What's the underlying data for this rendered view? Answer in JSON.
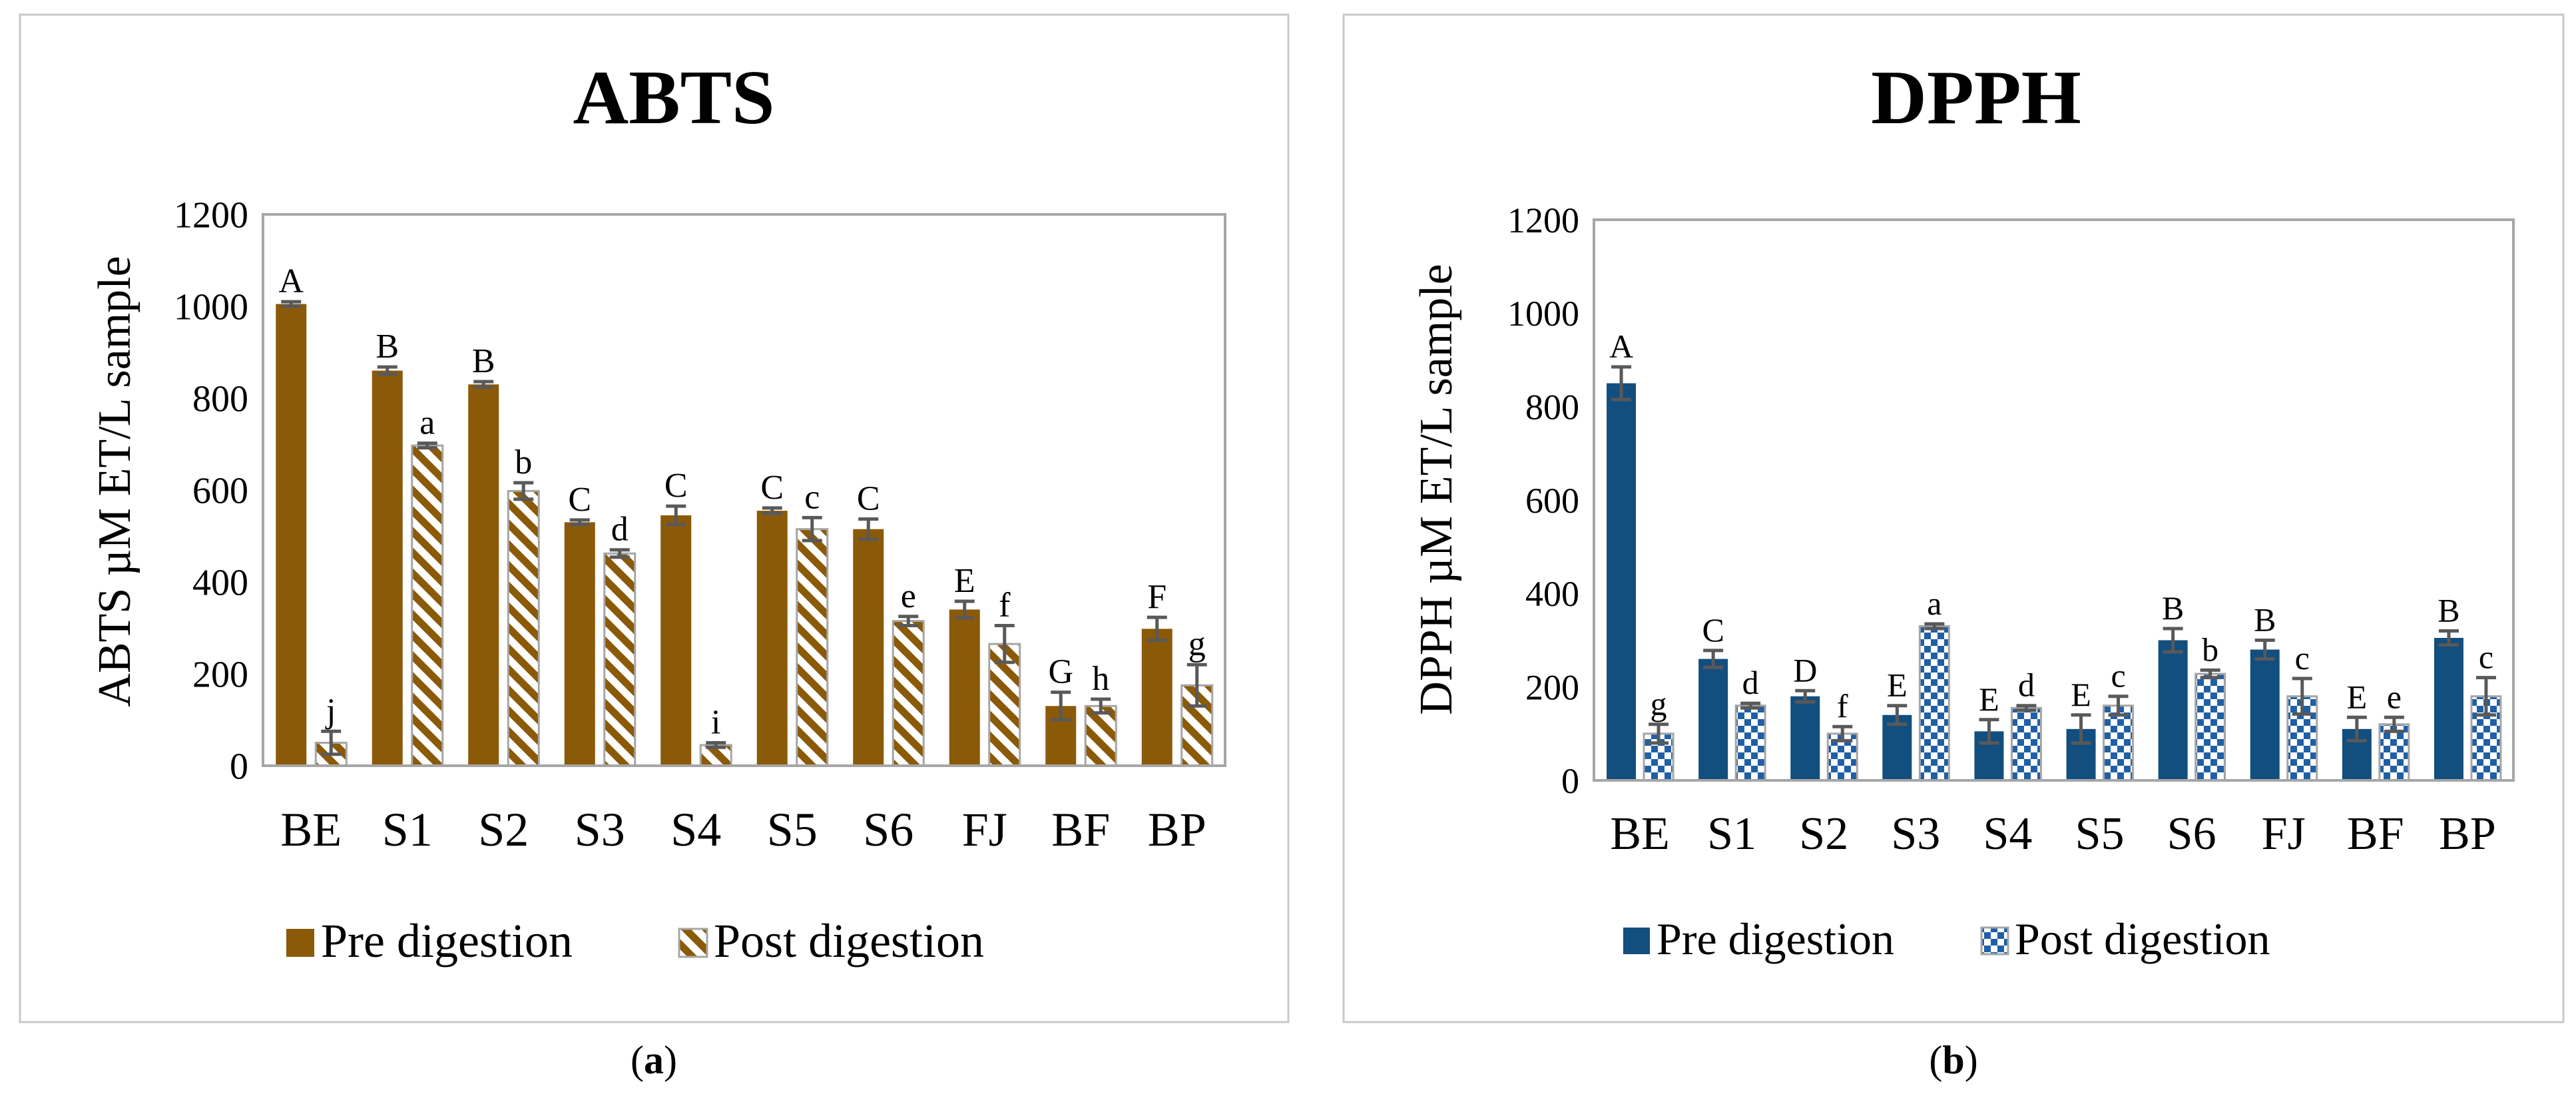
{
  "panels": [
    {
      "caption_prefix": "(",
      "caption_letter": "a",
      "caption_suffix": ")"
    },
    {
      "caption_prefix": "(",
      "caption_letter": "b",
      "caption_suffix": ")"
    }
  ],
  "colors": {
    "abts_pre": "#8B5A08",
    "abts_post_stripe": "#8B5A08",
    "dpph_pre": "#124E7E",
    "dpph_post_check": "#1F5FA6",
    "axis": "#A6A6A6",
    "error_bar": "#595959"
  },
  "chart_data": [
    {
      "type": "bar",
      "title": "ABTS",
      "ylabel": "ABTS µM ET/L sample",
      "xlabel": "",
      "ylim": [
        0,
        1200
      ],
      "yticks": [
        0,
        200,
        400,
        600,
        800,
        1000,
        1200
      ],
      "grid": false,
      "legend_position": "bottom",
      "categories": [
        "BE",
        "S1",
        "S2",
        "S3",
        "S4",
        "S5",
        "S6",
        "FJ",
        "BF",
        "BP"
      ],
      "series": [
        {
          "name": "Pre digestion",
          "pattern": "solid",
          "values": [
            1005,
            860,
            830,
            530,
            545,
            555,
            515,
            340,
            130,
            298
          ],
          "errors": [
            5,
            8,
            6,
            5,
            20,
            6,
            22,
            18,
            30,
            25
          ],
          "letters": [
            "A",
            "B",
            "B",
            "C",
            "C",
            "C",
            "C",
            "E",
            "G",
            "F"
          ]
        },
        {
          "name": "Post digestion",
          "pattern": "diagonal-stripes",
          "values": [
            50,
            697,
            598,
            462,
            45,
            515,
            315,
            265,
            130,
            175
          ],
          "errors": [
            25,
            5,
            18,
            8,
            5,
            25,
            10,
            40,
            15,
            45
          ],
          "letters": [
            "j",
            "a",
            "b",
            "d",
            "i",
            "c",
            "e",
            "f",
            "h",
            "g"
          ]
        }
      ]
    },
    {
      "type": "bar",
      "title": "DPPH",
      "ylabel": "DPPH µM ET/L sample",
      "xlabel": "",
      "ylim": [
        0,
        1200
      ],
      "yticks": [
        0,
        200,
        400,
        600,
        800,
        1000,
        1200
      ],
      "grid": false,
      "legend_position": "bottom",
      "categories": [
        "BE",
        "S1",
        "S2",
        "S3",
        "S4",
        "S5",
        "S6",
        "FJ",
        "BF",
        "BP"
      ],
      "series": [
        {
          "name": "Pre digestion",
          "pattern": "solid",
          "values": [
            850,
            260,
            180,
            140,
            105,
            110,
            300,
            280,
            110,
            305
          ],
          "errors": [
            35,
            18,
            12,
            20,
            25,
            30,
            25,
            20,
            25,
            15
          ],
          "letters": [
            "A",
            "C",
            "D",
            "E",
            "E",
            "E",
            "B",
            "B",
            "E",
            "B"
          ]
        },
        {
          "name": "Post digestion",
          "pattern": "checker",
          "values": [
            100,
            160,
            100,
            330,
            155,
            160,
            228,
            180,
            120,
            180
          ],
          "errors": [
            20,
            5,
            15,
            5,
            5,
            20,
            8,
            38,
            15,
            40
          ],
          "letters": [
            "g",
            "d",
            "f",
            "a",
            "d",
            "c",
            "b",
            "c",
            "e",
            "c"
          ]
        }
      ]
    }
  ]
}
